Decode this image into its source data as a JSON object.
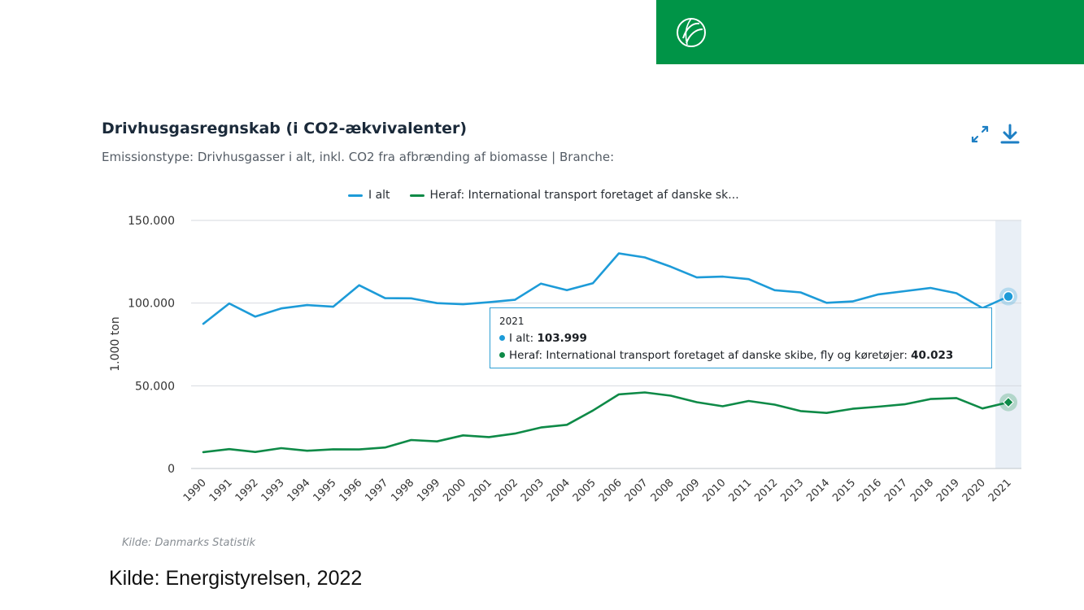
{
  "brand": {
    "color": "#009447",
    "logo_icon": "leaf-globe-icon"
  },
  "chart_header": {
    "title": "Drivhusgasregnskab (i CO2-ækvivalenter)",
    "subtitle": "Emissionstype: Drivhusgasser i alt, inkl. CO2 fra afbrænding af biomasse | Branche:",
    "expand_icon": "expand-icon",
    "download_icon": "download-icon"
  },
  "legend": [
    {
      "label": "I alt",
      "color": "#1d9bd8"
    },
    {
      "label": "Heraf: International transport foretaget af danske sk...",
      "color": "#0e8a47"
    }
  ],
  "tooltip": {
    "year": "2021",
    "rows": [
      {
        "label": "I alt: ",
        "value": "103.999",
        "color": "#1d9bd8"
      },
      {
        "label": "Heraf: International transport foretaget af danske skibe, fly og køretøjer: ",
        "value": "40.023",
        "color": "#0e8a47"
      }
    ]
  },
  "chart_data": {
    "type": "line",
    "x": [
      "1990",
      "1991",
      "1992",
      "1993",
      "1994",
      "1995",
      "1996",
      "1997",
      "1998",
      "1999",
      "2000",
      "2001",
      "2002",
      "2003",
      "2004",
      "2005",
      "2006",
      "2007",
      "2008",
      "2009",
      "2010",
      "2011",
      "2012",
      "2013",
      "2014",
      "2015",
      "2016",
      "2017",
      "2018",
      "2019",
      "2020",
      "2021"
    ],
    "series": [
      {
        "name": "I alt",
        "color": "#1d9bd8",
        "values": [
          87500,
          99800,
          91800,
          96800,
          98800,
          97800,
          110800,
          103000,
          102900,
          100000,
          99300,
          100500,
          102000,
          111800,
          107800,
          112000,
          130100,
          127600,
          122000,
          115500,
          116000,
          114500,
          107800,
          106500,
          100200,
          101000,
          105300,
          107200,
          109200,
          106000,
          97000,
          103999
        ]
      },
      {
        "name": "Heraf: International transport foretaget af danske skibe, fly og køretøjer",
        "color": "#0e8a47",
        "values": [
          9900,
          11700,
          10000,
          12300,
          10700,
          11600,
          11500,
          12700,
          17200,
          16400,
          20000,
          19000,
          21100,
          24800,
          26400,
          35000,
          44800,
          46000,
          44000,
          40100,
          37600,
          40800,
          38600,
          34700,
          33600,
          36100,
          37400,
          38800,
          42000,
          42600,
          36300,
          40023
        ]
      }
    ],
    "ylabel": "1.000 ton",
    "ylim": [
      0,
      150000
    ],
    "yticks": [
      0,
      50000,
      100000,
      150000
    ],
    "ytick_labels": [
      "0",
      "50.000",
      "100.000",
      "150.000"
    ],
    "highlight": "2021",
    "grid": true,
    "legend_position": "top"
  },
  "source_note": "Kilde: Danmarks Statistik",
  "footer_source": "Kilde: Energistyrelsen, 2022"
}
